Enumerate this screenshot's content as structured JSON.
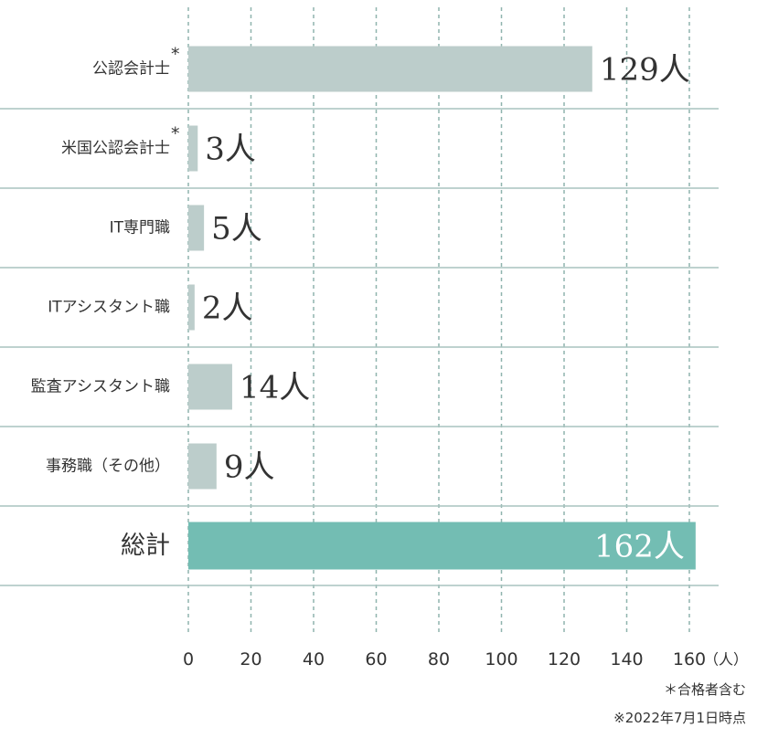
{
  "chart_data": {
    "type": "bar",
    "orientation": "horizontal",
    "categories": [
      "公認会計士",
      "米国公認会計士",
      "IT専門職",
      "ITアシスタント職",
      "監査アシスタント職",
      "事務職（その他）",
      "総計"
    ],
    "category_marks": [
      "*",
      "*",
      "",
      "",
      "",
      "",
      ""
    ],
    "values": [
      129,
      3,
      5,
      2,
      14,
      9,
      162
    ],
    "value_labels": [
      "129人",
      "3人",
      "5人",
      "2人",
      "14人",
      "9人",
      "162人"
    ],
    "xlim": [
      0,
      160
    ],
    "xticks": [
      "0",
      "20",
      "40",
      "60",
      "80",
      "100",
      "120",
      "140",
      "160"
    ],
    "xunit": "（人）",
    "grid": true,
    "colors": {
      "bar": "#bccdcb",
      "total_bar": "#73bdb3",
      "grid": "#8fb4ae",
      "separator": "#a9c3bf"
    }
  },
  "notes": [
    "＊合格者含む",
    "※2022年7月1日時点"
  ]
}
